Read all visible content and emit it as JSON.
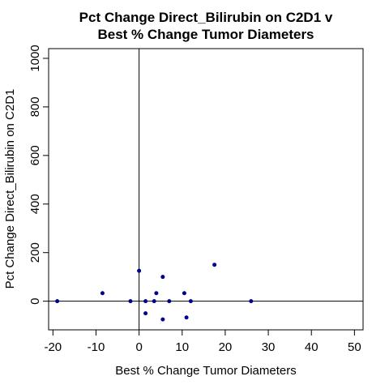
{
  "chart_data": {
    "type": "scatter",
    "title_lines": [
      "Pct Change Direct_Bilirubin on C2D1 v",
      "Best % Change Tumor Diameters"
    ],
    "xlabel": "Best % Change Tumor Diameters",
    "ylabel": "Pct Change Direct_Bilirubin on C2D1",
    "xlim": [
      -21,
      52
    ],
    "ylim": [
      -118,
      1040
    ],
    "x_ticks": [
      -20,
      -10,
      0,
      10,
      20,
      30,
      40,
      50
    ],
    "y_ticks": [
      0,
      200,
      400,
      600,
      800,
      1000
    ],
    "reference_lines": {
      "x": 0,
      "y": 0
    },
    "point_color": "#00008B",
    "points": [
      {
        "x": -19,
        "y": 0
      },
      {
        "x": -8.5,
        "y": 33
      },
      {
        "x": -2,
        "y": 0
      },
      {
        "x": 0,
        "y": 125
      },
      {
        "x": 1.5,
        "y": 0
      },
      {
        "x": 1.5,
        "y": -50
      },
      {
        "x": 3.5,
        "y": 0
      },
      {
        "x": 4,
        "y": 33
      },
      {
        "x": 5.5,
        "y": 100
      },
      {
        "x": 5.5,
        "y": -75
      },
      {
        "x": 7,
        "y": 0
      },
      {
        "x": 10.5,
        "y": 33
      },
      {
        "x": 11,
        "y": -67
      },
      {
        "x": 12,
        "y": 0
      },
      {
        "x": 17.5,
        "y": 150
      },
      {
        "x": 26,
        "y": 0
      }
    ]
  }
}
